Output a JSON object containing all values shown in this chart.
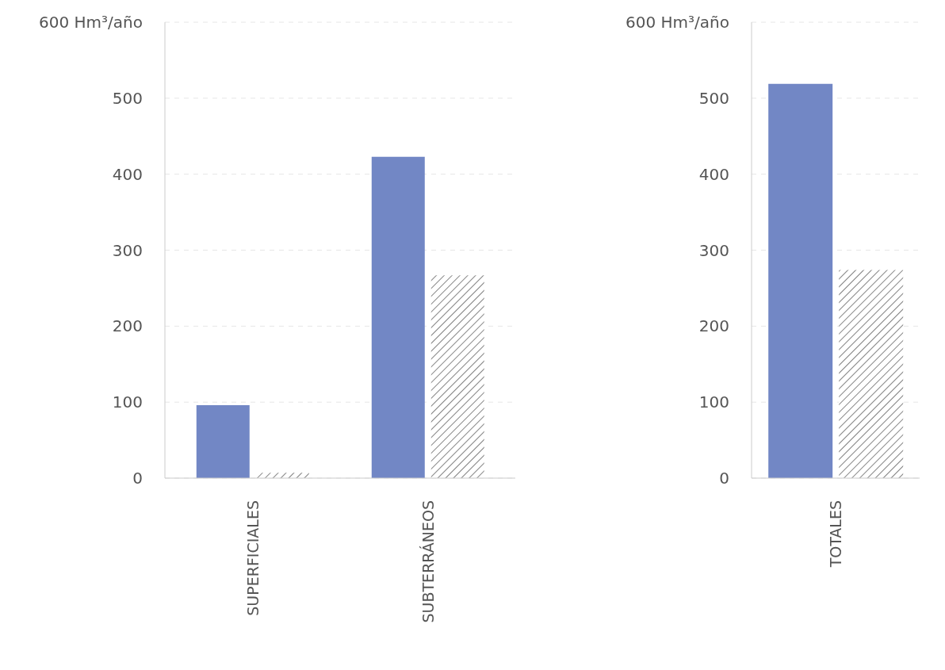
{
  "chart_data": [
    {
      "type": "bar",
      "categories": [
        "SUPERFICIALES",
        "SUBTERRÁNEOS"
      ],
      "series": [
        {
          "color": "#7287c5",
          "values": [
            96,
            423
          ]
        },
        {
          "color": "#404040",
          "values": [
            7,
            267
          ]
        }
      ],
      "ylim": [
        0,
        600
      ],
      "yticks": [
        0,
        100,
        200,
        300,
        400,
        500,
        {
          "value": 600,
          "label": "600 Hm³/año"
        }
      ],
      "grid": "y",
      "legend": false
    },
    {
      "type": "bar",
      "categories": [
        "TOTALES"
      ],
      "series": [
        {
          "color": "#7287c5",
          "values": [
            519
          ]
        },
        {
          "color": "#404040",
          "values": [
            274
          ]
        }
      ],
      "ylim": [
        0,
        600
      ],
      "yticks": [
        0,
        100,
        200,
        300,
        400,
        500,
        {
          "value": 600,
          "label": "600 Hm³/año"
        }
      ],
      "grid": "y",
      "legend": false
    }
  ]
}
